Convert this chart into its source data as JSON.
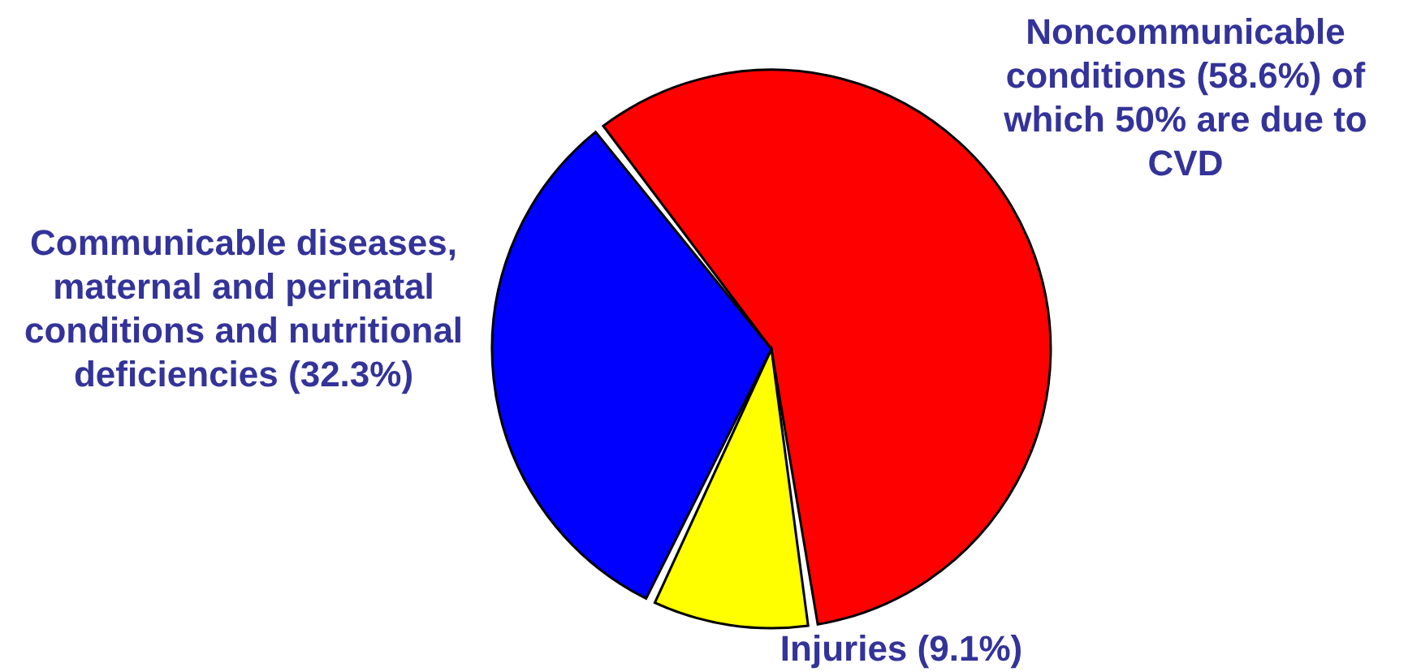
{
  "chart_data": {
    "type": "pie",
    "categories": [
      "Noncommunicable conditions (58.6%) of which 50% are due to CVD",
      "Injuries (9.1%)",
      "Communicable diseases, maternal and perinatal conditions and nutritional deficiencies (32.3%)"
    ],
    "values": [
      58.6,
      9.1,
      32.3
    ],
    "colors": [
      "#ff0000",
      "#ffff00",
      "#0000ff"
    ]
  }
}
